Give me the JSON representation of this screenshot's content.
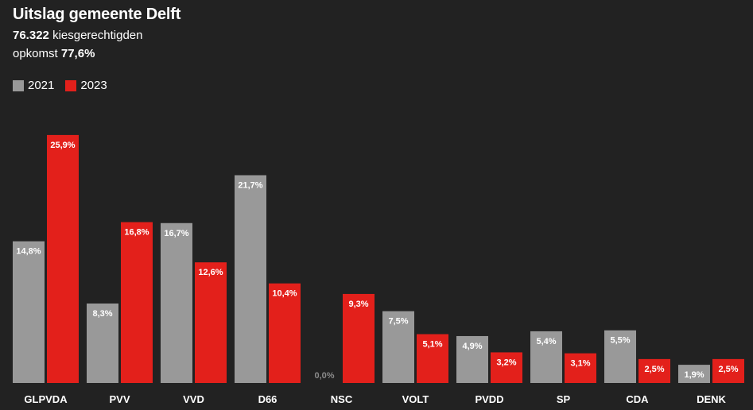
{
  "header": {
    "title": "Uitslag gemeente Delft",
    "voters_value": "76.322",
    "voters_label": "kiesgerechtigden",
    "turnout_label": "opkomst",
    "turnout_value": "77,6%"
  },
  "colors": {
    "background": "#222222",
    "series_2021": "#999999",
    "series_2023": "#e3201b",
    "label_zero": "#8a8a8a"
  },
  "chart_data": {
    "type": "bar",
    "title": "Uitslag gemeente Delft",
    "categories": [
      "GLPVDA",
      "PVV",
      "VVD",
      "D66",
      "NSC",
      "VOLT",
      "PVDD",
      "SP",
      "CDA",
      "DENK"
    ],
    "series": [
      {
        "name": "2021",
        "values": [
          14.8,
          8.3,
          16.7,
          21.7,
          0.0,
          7.5,
          4.9,
          5.4,
          5.5,
          1.9
        ],
        "labels": [
          "14,8%",
          "8,3%",
          "16,7%",
          "21,7%",
          "0,0%",
          "7,5%",
          "4,9%",
          "5,4%",
          "5,5%",
          "1,9%"
        ]
      },
      {
        "name": "2023",
        "values": [
          25.9,
          16.8,
          12.6,
          10.4,
          9.3,
          5.1,
          3.2,
          3.1,
          2.5,
          2.5
        ],
        "labels": [
          "25,9%",
          "16,8%",
          "12,6%",
          "10,4%",
          "9,3%",
          "5,1%",
          "3,2%",
          "3,1%",
          "2,5%",
          "2,5%"
        ]
      }
    ],
    "xlabel": "",
    "ylabel": "",
    "ylim": [
      0,
      26
    ],
    "grid": false,
    "legend": "top-left"
  }
}
